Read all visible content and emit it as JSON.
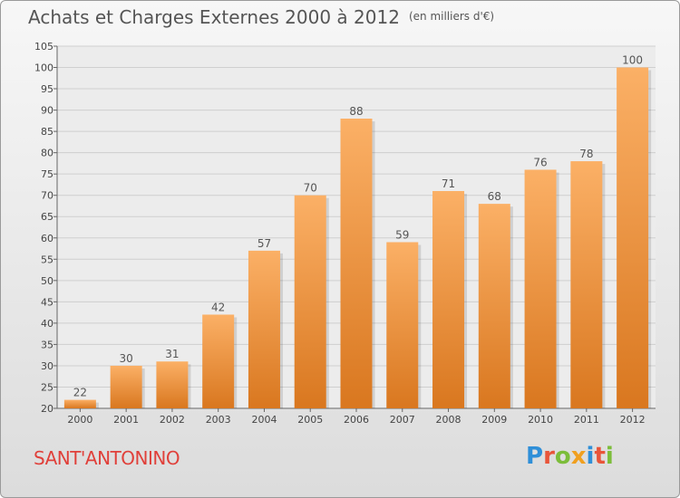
{
  "chart_data": {
    "type": "bar",
    "title": "Achats et Charges Externes 2000 à 2012",
    "unit": "(en milliers d'€)",
    "categories": [
      "2000",
      "2001",
      "2002",
      "2003",
      "2004",
      "2005",
      "2006",
      "2007",
      "2008",
      "2009",
      "2010",
      "2011",
      "2012"
    ],
    "values": [
      22,
      30,
      31,
      42,
      57,
      70,
      88,
      59,
      71,
      68,
      76,
      78,
      100
    ],
    "ylim": [
      20,
      105
    ],
    "ytick_step": 5,
    "xlabel": "",
    "ylabel": "",
    "grid": true
  },
  "commune": "SANT'ANTONINO",
  "logo": {
    "letters": [
      "P",
      "r",
      "o",
      "x",
      "i",
      "t",
      "i"
    ],
    "colors": [
      "#2f8fd8",
      "#e8553a",
      "#7cbd3a",
      "#f0a020",
      "#2f8fd8",
      "#e8553a",
      "#7cbd3a"
    ]
  },
  "colors": {
    "bar_light": "#fbb066",
    "bar_dark": "#d9771f",
    "grid": "#cfcfcf"
  }
}
